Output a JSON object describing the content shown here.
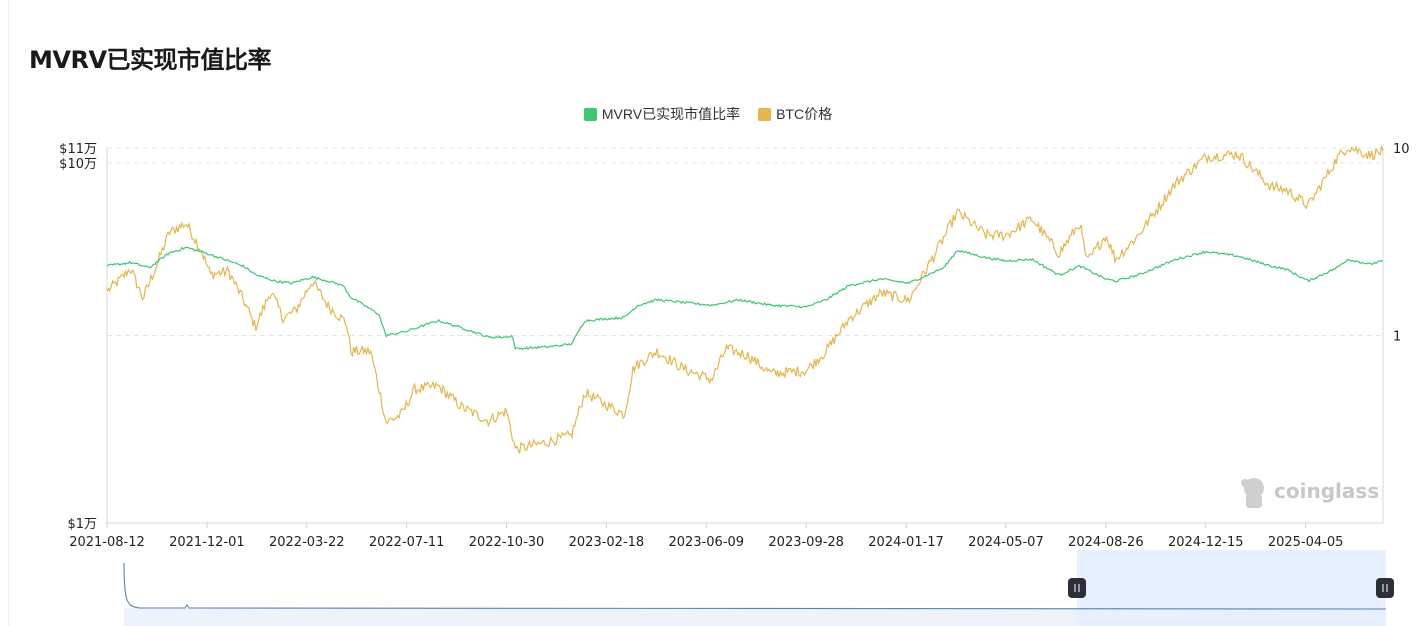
{
  "title": "MVRV已实现市值比率",
  "watermark": "coinglass",
  "colors": {
    "mvrv": "#3dc674",
    "btc": "#e4b64c",
    "grid": "#e5e5e5",
    "navigator_fill": "#e8efff",
    "navigator_line": "#5b82b5"
  },
  "chart_data": {
    "type": "line",
    "title": "MVRV已实现市值比率",
    "x_tick_labels": [
      "2021-08-12",
      "2021-12-01",
      "2022-03-22",
      "2022-07-11",
      "2022-10-30",
      "2023-02-18",
      "2023-06-09",
      "2023-09-28",
      "2024-01-17",
      "2024-05-07",
      "2024-08-26",
      "2024-12-15",
      "2025-04-05"
    ],
    "x_range": [
      "2021-08-12",
      "2025-06-30"
    ],
    "y_left": {
      "scale": "log",
      "range": [
        10000,
        110000
      ],
      "tick_labels": [
        "$1万",
        "$10万",
        "$11万"
      ],
      "tick_values": [
        10000,
        100000,
        110000
      ]
    },
    "y_right": {
      "scale": "log",
      "range": [
        0.1,
        10
      ],
      "tick_labels": [
        "1",
        "10"
      ],
      "tick_values": [
        1,
        10
      ]
    },
    "grid": true,
    "legend_position": "top-center",
    "series": [
      {
        "name": "MVRV已实现市值比率",
        "axis": "right",
        "color": "#3dc674",
        "points": [
          [
            "2021-08-12",
            2.35
          ],
          [
            "2021-09-07",
            2.45
          ],
          [
            "2021-09-28",
            2.3
          ],
          [
            "2021-10-20",
            2.75
          ],
          [
            "2021-11-08",
            2.95
          ],
          [
            "2021-11-30",
            2.75
          ],
          [
            "2021-12-20",
            2.55
          ],
          [
            "2022-01-10",
            2.35
          ],
          [
            "2022-01-25",
            2.1
          ],
          [
            "2022-02-15",
            1.95
          ],
          [
            "2022-03-05",
            1.9
          ],
          [
            "2022-03-28",
            2.05
          ],
          [
            "2022-04-15",
            1.95
          ],
          [
            "2022-05-01",
            1.85
          ],
          [
            "2022-05-10",
            1.6
          ],
          [
            "2022-06-10",
            1.3
          ],
          [
            "2022-06-18",
            1.0
          ],
          [
            "2022-07-10",
            1.05
          ],
          [
            "2022-08-15",
            1.2
          ],
          [
            "2022-09-10",
            1.1
          ],
          [
            "2022-10-10",
            0.98
          ],
          [
            "2022-10-30",
            0.98
          ],
          [
            "2022-11-05",
            1.0
          ],
          [
            "2022-11-09",
            0.85
          ],
          [
            "2022-12-15",
            0.87
          ],
          [
            "2023-01-10",
            0.9
          ],
          [
            "2023-01-25",
            1.2
          ],
          [
            "2023-03-10",
            1.25
          ],
          [
            "2023-03-25",
            1.45
          ],
          [
            "2023-04-15",
            1.55
          ],
          [
            "2023-05-15",
            1.5
          ],
          [
            "2023-06-15",
            1.45
          ],
          [
            "2023-07-15",
            1.55
          ],
          [
            "2023-08-20",
            1.45
          ],
          [
            "2023-09-28",
            1.42
          ],
          [
            "2023-10-20",
            1.55
          ],
          [
            "2023-11-15",
            1.85
          ],
          [
            "2023-12-20",
            2.0
          ],
          [
            "2024-01-20",
            1.9
          ],
          [
            "2024-02-28",
            2.3
          ],
          [
            "2024-03-14",
            2.85
          ],
          [
            "2024-04-15",
            2.6
          ],
          [
            "2024-05-07",
            2.5
          ],
          [
            "2024-06-05",
            2.55
          ],
          [
            "2024-07-05",
            2.1
          ],
          [
            "2024-07-28",
            2.35
          ],
          [
            "2024-08-26",
            2.0
          ],
          [
            "2024-09-06",
            1.95
          ],
          [
            "2024-10-01",
            2.1
          ],
          [
            "2024-11-12",
            2.55
          ],
          [
            "2024-12-15",
            2.8
          ],
          [
            "2025-01-20",
            2.65
          ],
          [
            "2025-02-25",
            2.35
          ],
          [
            "2025-03-15",
            2.25
          ],
          [
            "2025-04-08",
            1.95
          ],
          [
            "2025-05-10",
            2.3
          ],
          [
            "2025-05-22",
            2.55
          ],
          [
            "2025-06-15",
            2.4
          ],
          [
            "2025-06-30",
            2.5
          ]
        ]
      },
      {
        "name": "BTC价格",
        "axis": "left",
        "color": "#e4b64c",
        "points": [
          [
            "2021-08-12",
            44000
          ],
          [
            "2021-08-25",
            47000
          ],
          [
            "2021-09-07",
            51000
          ],
          [
            "2021-09-21",
            42000
          ],
          [
            "2021-10-10",
            55000
          ],
          [
            "2021-10-20",
            64000
          ],
          [
            "2021-11-08",
            68000
          ],
          [
            "2021-11-25",
            57000
          ],
          [
            "2021-12-05",
            49000
          ],
          [
            "2021-12-25",
            50000
          ],
          [
            "2022-01-10",
            42000
          ],
          [
            "2022-01-24",
            35000
          ],
          [
            "2022-02-10",
            44000
          ],
          [
            "2022-02-24",
            37000
          ],
          [
            "2022-03-10",
            39000
          ],
          [
            "2022-03-28",
            47000
          ],
          [
            "2022-04-15",
            40000
          ],
          [
            "2022-05-05",
            36000
          ],
          [
            "2022-05-10",
            30000
          ],
          [
            "2022-06-01",
            30000
          ],
          [
            "2022-06-13",
            22000
          ],
          [
            "2022-06-18",
            19000
          ],
          [
            "2022-07-05",
            20000
          ],
          [
            "2022-07-20",
            23500
          ],
          [
            "2022-08-15",
            24000
          ],
          [
            "2022-09-10",
            21000
          ],
          [
            "2022-10-10",
            19200
          ],
          [
            "2022-10-30",
            20500
          ],
          [
            "2022-11-09",
            16000
          ],
          [
            "2022-12-15",
            16800
          ],
          [
            "2023-01-10",
            17500
          ],
          [
            "2023-01-25",
            23000
          ],
          [
            "2023-03-10",
            20000
          ],
          [
            "2023-03-20",
            27000
          ],
          [
            "2023-04-15",
            30000
          ],
          [
            "2023-05-15",
            26800
          ],
          [
            "2023-06-15",
            25000
          ],
          [
            "2023-07-01",
            30500
          ],
          [
            "2023-07-25",
            29200
          ],
          [
            "2023-08-20",
            26000
          ],
          [
            "2023-09-28",
            26500
          ],
          [
            "2023-10-20",
            30000
          ],
          [
            "2023-11-15",
            37000
          ],
          [
            "2023-12-20",
            43500
          ],
          [
            "2024-01-20",
            41500
          ],
          [
            "2024-02-28",
            62000
          ],
          [
            "2024-03-14",
            73000
          ],
          [
            "2024-04-15",
            63000
          ],
          [
            "2024-05-07",
            63000
          ],
          [
            "2024-06-05",
            70000
          ],
          [
            "2024-07-05",
            56000
          ],
          [
            "2024-07-28",
            68000
          ],
          [
            "2024-08-05",
            53000
          ],
          [
            "2024-08-26",
            63000
          ],
          [
            "2024-09-06",
            54000
          ],
          [
            "2024-10-01",
            63000
          ],
          [
            "2024-11-12",
            88000
          ],
          [
            "2024-12-15",
            104000
          ],
          [
            "2025-01-20",
            106000
          ],
          [
            "2025-02-25",
            86000
          ],
          [
            "2025-03-15",
            84000
          ],
          [
            "2025-04-08",
            76000
          ],
          [
            "2025-05-10",
            103000
          ],
          [
            "2025-05-22",
            111000
          ],
          [
            "2025-06-15",
            105000
          ],
          [
            "2025-06-30",
            108000
          ]
        ]
      }
    ]
  }
}
